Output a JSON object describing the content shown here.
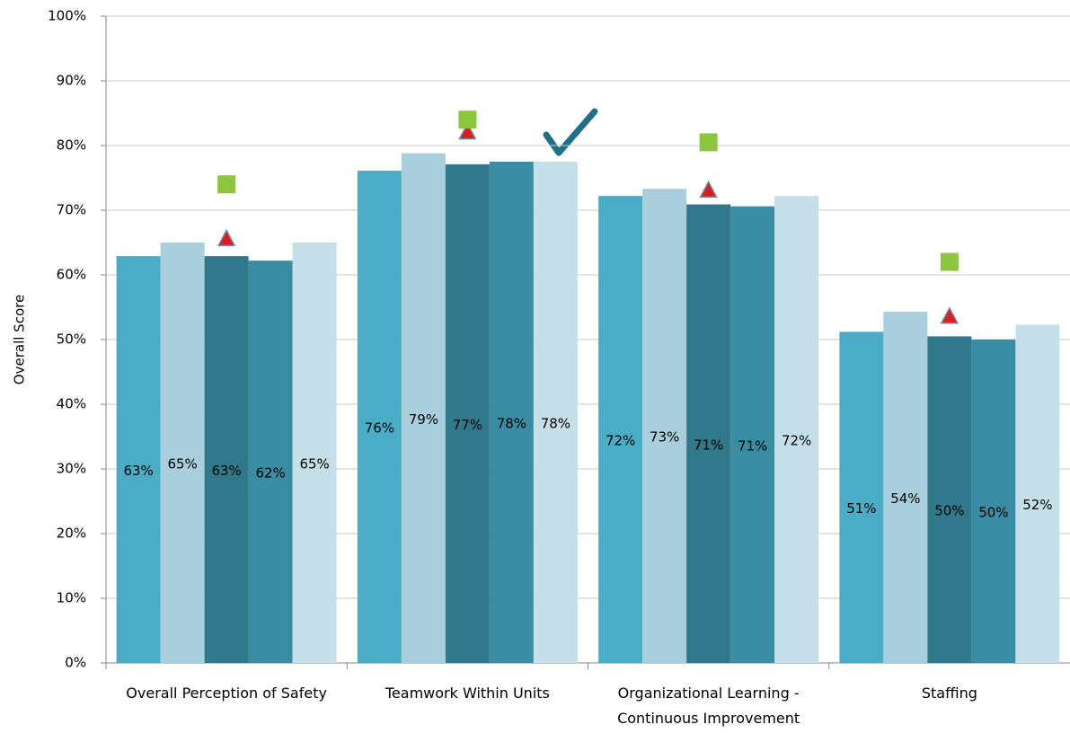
{
  "chart_data": {
    "type": "bar",
    "y_label": "Overall Score",
    "categories": [
      "Overall Perception of Safety",
      "Teamwork Within Units",
      "Organizational Learning - Continuous Improvement",
      "Staffing"
    ],
    "series": [
      {
        "color": "#4bacc6",
        "values": [
          62.9,
          76.1,
          72.2,
          51.2
        ],
        "value_labels": [
          "63%",
          "76%",
          "72%",
          "51%"
        ]
      },
      {
        "color": "#a9cfdc",
        "values": [
          65.0,
          78.8,
          73.3,
          54.3
        ],
        "value_labels": [
          "65%",
          "79%",
          "73%",
          "54%"
        ]
      },
      {
        "color": "#31788a",
        "values": [
          62.9,
          77.1,
          70.9,
          50.5
        ],
        "value_labels": [
          "63%",
          "77%",
          "71%",
          "50%"
        ]
      },
      {
        "color": "#3a8ca3",
        "values": [
          62.2,
          77.5,
          70.6,
          50.0
        ],
        "value_labels": [
          "62%",
          "78%",
          "71%",
          "50%"
        ]
      },
      {
        "color": "#c5dfe8",
        "values": [
          65.0,
          77.5,
          72.2,
          52.3
        ],
        "value_labels": [
          "65%",
          "78%",
          "72%",
          "52%"
        ]
      }
    ],
    "markers": [
      {
        "shape": "triangle",
        "color": "#e31a1c",
        "values": [
          65.5,
          82.0,
          73.0,
          53.5
        ]
      },
      {
        "shape": "square",
        "color": "#8cc63f",
        "values": [
          74.0,
          84.0,
          80.5,
          62.0
        ]
      }
    ],
    "ylim": [
      0,
      100
    ],
    "yticks": [
      {
        "value": 0,
        "label": "0%"
      },
      {
        "value": 10,
        "label": "10%"
      },
      {
        "value": 20,
        "label": "20%"
      },
      {
        "value": 30,
        "label": "30%"
      },
      {
        "value": 40,
        "label": "40%"
      },
      {
        "value": 50,
        "label": "50%"
      },
      {
        "value": 60,
        "label": "60%"
      },
      {
        "value": 70,
        "label": "70%"
      },
      {
        "value": 80,
        "label": "80%"
      },
      {
        "value": 90,
        "label": "90%"
      },
      {
        "value": 100,
        "label": "100%"
      }
    ],
    "grid": true
  }
}
